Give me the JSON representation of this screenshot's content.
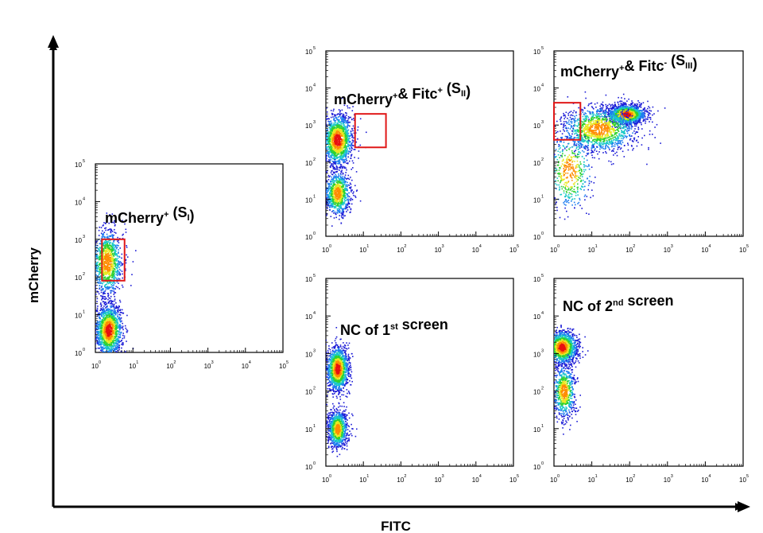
{
  "figure": {
    "x_axis_title": "FITC",
    "y_axis_title": "mCherry"
  },
  "chart_data": [
    {
      "id": "panel-s1",
      "type": "scatter",
      "title_parts": [
        {
          "t": "mCherry",
          "s": "n"
        },
        {
          "t": "+",
          "s": "sup"
        },
        {
          "t": " (S",
          "s": "n"
        },
        {
          "t": "I",
          "s": "sub"
        },
        {
          "t": ")",
          "s": "n"
        }
      ],
      "xscale": "log",
      "yscale": "log",
      "xlim": [
        1,
        100000
      ],
      "ylim": [
        1,
        100000
      ],
      "xticks": [
        "10|0",
        "10|1",
        "10|2",
        "10|3",
        "10|4",
        "10|5"
      ],
      "yticks": [
        "10|0",
        "10|1",
        "10|2",
        "10|3",
        "10|4",
        "10|5"
      ],
      "populations": [
        {
          "cx": 2.2,
          "cy": 4.0,
          "sx": 0.18,
          "sy": 0.35,
          "n": 1500
        },
        {
          "cx": 2.0,
          "cy": 250,
          "sx": 0.2,
          "sy": 0.45,
          "n": 1100
        }
      ],
      "gate": {
        "x": [
          1.5,
          6
        ],
        "y": [
          80,
          1000
        ]
      }
    },
    {
      "id": "panel-s2",
      "type": "scatter",
      "title_parts": [
        {
          "t": "mCherry",
          "s": "n"
        },
        {
          "t": "+",
          "s": "sup"
        },
        {
          "t": "& Fitc",
          "s": "n"
        },
        {
          "t": "+",
          "s": "sup"
        },
        {
          "t": " (S",
          "s": "n"
        },
        {
          "t": "II",
          "s": "sub"
        },
        {
          "t": ")",
          "s": "n"
        }
      ],
      "xscale": "log",
      "yscale": "log",
      "xlim": [
        1,
        100000
      ],
      "ylim": [
        1,
        100000
      ],
      "xticks": [
        "10|0",
        "10|1",
        "10|2",
        "10|3",
        "10|4",
        "10|5"
      ],
      "yticks": [
        "10|0",
        "10|1",
        "10|2",
        "10|3",
        "10|4",
        "10|5"
      ],
      "populations": [
        {
          "cx": 2.0,
          "cy": 400,
          "sx": 0.2,
          "sy": 0.35,
          "n": 1500
        },
        {
          "cx": 2.0,
          "cy": 15,
          "sx": 0.17,
          "sy": 0.3,
          "n": 900
        }
      ],
      "gate": {
        "x": [
          6,
          40
        ],
        "y": [
          250,
          2000
        ]
      }
    },
    {
      "id": "panel-s3",
      "type": "scatter",
      "title_parts": [
        {
          "t": "mCherry",
          "s": "n"
        },
        {
          "t": "+",
          "s": "sup"
        },
        {
          "t": "& Fitc",
          "s": "n"
        },
        {
          "t": "-",
          "s": "sup"
        },
        {
          "t": " (S",
          "s": "n"
        },
        {
          "t": "III",
          "s": "sub"
        },
        {
          "t": ")",
          "s": "n"
        }
      ],
      "xscale": "log",
      "yscale": "log",
      "xlim": [
        1,
        100000
      ],
      "ylim": [
        1,
        100000
      ],
      "xticks": [
        "10|0",
        "10|1",
        "10|2",
        "10|3",
        "10|4",
        "10|5"
      ],
      "yticks": [
        "10|0",
        "10|1",
        "10|2",
        "10|3",
        "10|4",
        "10|5"
      ],
      "populations": [
        {
          "cx": 80,
          "cy": 2000,
          "sx": 0.25,
          "sy": 0.13,
          "n": 1600
        },
        {
          "cx": 15,
          "cy": 800,
          "sx": 0.5,
          "sy": 0.3,
          "n": 1300
        },
        {
          "cx": 2.5,
          "cy": 60,
          "sx": 0.3,
          "sy": 0.55,
          "n": 500
        }
      ],
      "gate": {
        "x": [
          1,
          5
        ],
        "y": [
          400,
          4000
        ]
      }
    },
    {
      "id": "panel-nc1",
      "type": "scatter",
      "title_parts": [
        {
          "t": "NC of 1",
          "s": "n"
        },
        {
          "t": "st",
          "s": "sup"
        },
        {
          "t": " screen",
          "s": "n"
        }
      ],
      "xscale": "log",
      "yscale": "log",
      "xlim": [
        1,
        100000
      ],
      "ylim": [
        1,
        100000
      ],
      "xticks": [
        "10|0",
        "10|1",
        "10|2",
        "10|3",
        "10|4",
        "10|5"
      ],
      "yticks": [
        "10|0",
        "10|1",
        "10|2",
        "10|3",
        "10|4",
        "10|5"
      ],
      "populations": [
        {
          "cx": 2.0,
          "cy": 400,
          "sx": 0.15,
          "sy": 0.3,
          "n": 1400
        },
        {
          "cx": 2.0,
          "cy": 10,
          "sx": 0.13,
          "sy": 0.25,
          "n": 1000
        }
      ],
      "gate": null
    },
    {
      "id": "panel-nc2",
      "type": "scatter",
      "title_parts": [
        {
          "t": "NC of 2",
          "s": "n"
        },
        {
          "t": "nd",
          "s": "sup"
        },
        {
          "t": " screen",
          "s": "n"
        }
      ],
      "xscale": "log",
      "yscale": "log",
      "xlim": [
        1,
        100000
      ],
      "ylim": [
        1,
        100000
      ],
      "xticks": [
        "10|0",
        "10|1",
        "10|2",
        "10|3",
        "10|4",
        "10|5"
      ],
      "yticks": [
        "10|0",
        "10|1",
        "10|2",
        "10|3",
        "10|4",
        "10|5"
      ],
      "populations": [
        {
          "cx": 1.6,
          "cy": 1500,
          "sx": 0.2,
          "sy": 0.22,
          "n": 1400
        },
        {
          "cx": 1.8,
          "cy": 100,
          "sx": 0.15,
          "sy": 0.35,
          "n": 700
        }
      ],
      "gate": null
    }
  ]
}
